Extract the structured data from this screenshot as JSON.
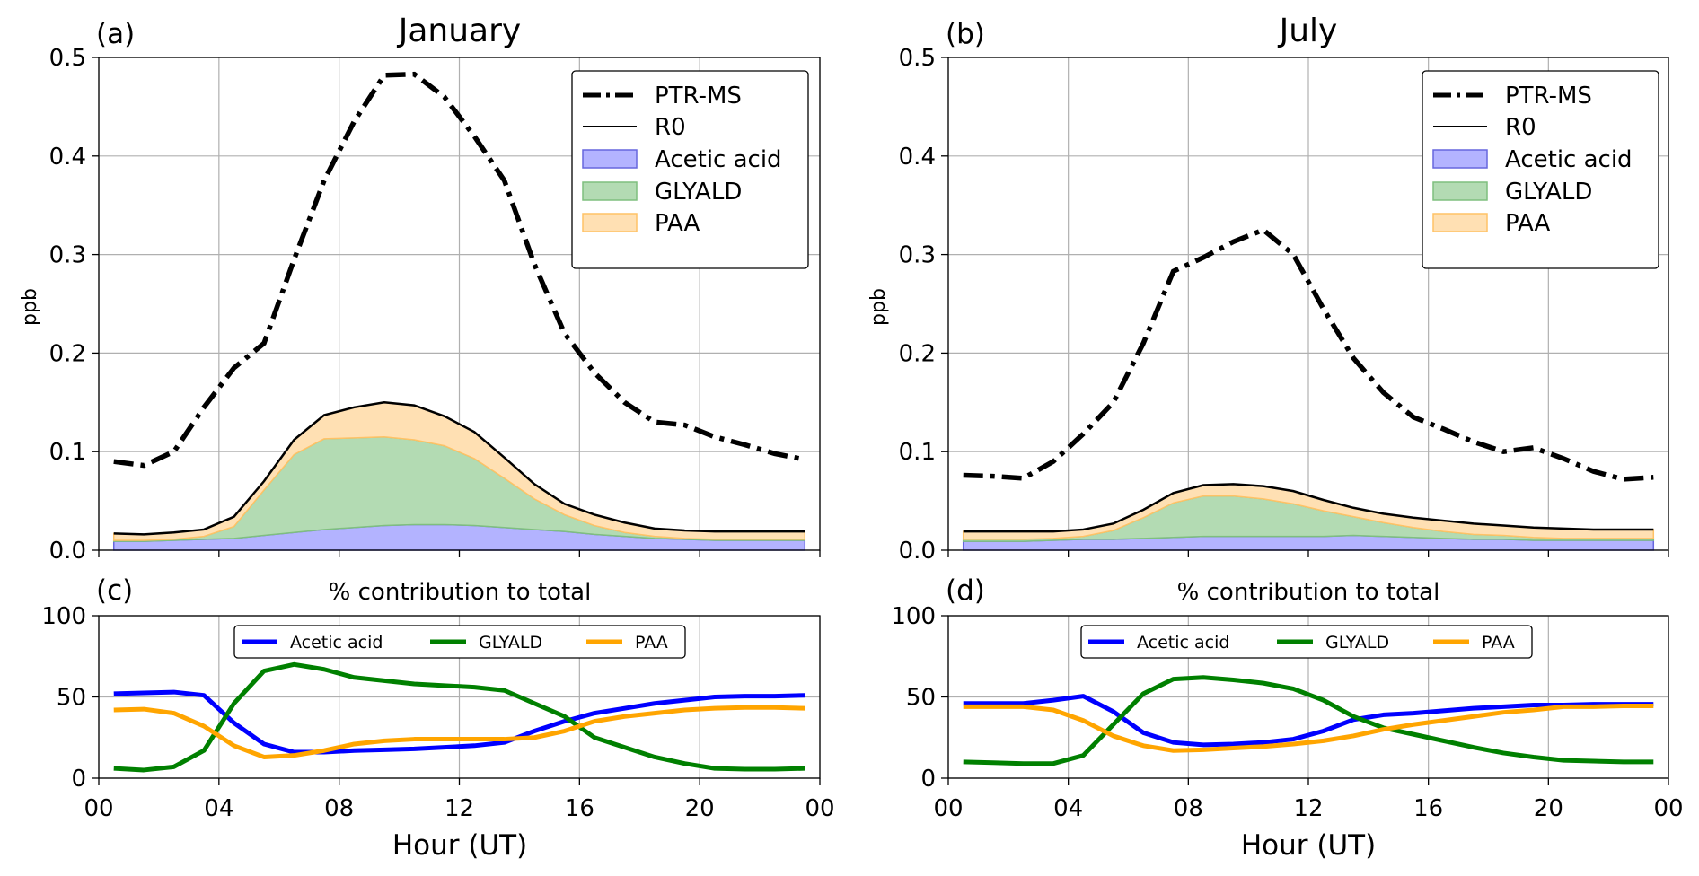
{
  "panels": [
    {
      "letter": "(a)",
      "title": "January",
      "ylabel": "ppb",
      "legend": {
        "ptrms": "PTR-MS",
        "r0": "R0",
        "acetic": "Acetic acid",
        "glyald": "GLYALD",
        "paa": "PAA"
      }
    },
    {
      "letter": "(b)",
      "title": "July",
      "ylabel": "ppb",
      "legend": {
        "ptrms": "PTR-MS",
        "r0": "R0",
        "acetic": "Acetic acid",
        "glyald": "GLYALD",
        "paa": "PAA"
      }
    },
    {
      "letter": "(c)",
      "title": "% contribution to total",
      "legend": {
        "acetic": "Acetic acid",
        "glyald": "GLYALD",
        "paa": "PAA"
      }
    },
    {
      "letter": "(d)",
      "title": "% contribution to total",
      "legend": {
        "acetic": "Acetic acid",
        "glyald": "GLYALD",
        "paa": "PAA"
      }
    }
  ],
  "xlabel": "Hour (UT)",
  "colors": {
    "acetic_fill": "#b3b3ff",
    "acetic_edge": "#6666dd",
    "acetic_line": "#0000ff",
    "glyald_fill": "#b3dbb3",
    "glyald_edge": "#7fbf7f",
    "glyald_line": "#008000",
    "paa_fill": "#ffe0b3",
    "paa_edge": "#ffc266",
    "paa_line": "#ffa500",
    "ptrms": "#000000",
    "r0": "#000000"
  },
  "chart_data": [
    {
      "panel": "(a)",
      "type": "area",
      "title": "January",
      "xlabel": "",
      "ylabel": "ppb",
      "xlim": [
        0,
        24
      ],
      "ylim": [
        0,
        0.5
      ],
      "xticks": [
        "00",
        "04",
        "08",
        "12",
        "16",
        "20",
        "00"
      ],
      "yticks": [
        "0.0",
        "0.1",
        "0.2",
        "0.3",
        "0.4",
        "0.5"
      ],
      "grid": true,
      "legend_position": "top-right",
      "x": [
        0.5,
        1.5,
        2.5,
        3.5,
        4.5,
        5.5,
        6.5,
        7.5,
        8.5,
        9.5,
        10.5,
        11.5,
        12.5,
        13.5,
        14.5,
        15.5,
        16.5,
        17.5,
        18.5,
        19.5,
        20.5,
        21.5,
        22.5,
        23.5
      ],
      "series": [
        {
          "name": "PTR-MS",
          "style": "dashdot",
          "values": [
            0.09,
            0.086,
            0.1,
            0.145,
            0.185,
            0.21,
            0.295,
            0.375,
            0.435,
            0.482,
            0.483,
            0.46,
            0.42,
            0.375,
            0.29,
            0.22,
            0.18,
            0.15,
            0.13,
            0.127,
            0.115,
            0.107,
            0.098,
            0.092
          ]
        },
        {
          "name": "R0",
          "style": "solid",
          "values": [
            0.017,
            0.016,
            0.018,
            0.021,
            0.034,
            0.07,
            0.112,
            0.137,
            0.145,
            0.15,
            0.147,
            0.136,
            0.12,
            0.094,
            0.067,
            0.047,
            0.036,
            0.028,
            0.022,
            0.02,
            0.019,
            0.019,
            0.019,
            0.019
          ]
        },
        {
          "name": "Acetic acid",
          "style": "stacked-area",
          "values": [
            0.009,
            0.009,
            0.01,
            0.011,
            0.012,
            0.015,
            0.018,
            0.021,
            0.023,
            0.025,
            0.026,
            0.026,
            0.025,
            0.023,
            0.021,
            0.019,
            0.016,
            0.014,
            0.012,
            0.011,
            0.01,
            0.01,
            0.01,
            0.01
          ]
        },
        {
          "name": "GLYALD",
          "style": "stacked-area",
          "values": [
            0.001,
            0.001,
            0.001,
            0.003,
            0.012,
            0.046,
            0.079,
            0.092,
            0.091,
            0.09,
            0.086,
            0.08,
            0.068,
            0.05,
            0.031,
            0.017,
            0.009,
            0.004,
            0.002,
            0.001,
            0.001,
            0.001,
            0.001,
            0.001
          ]
        },
        {
          "name": "PAA",
          "style": "stacked-area",
          "values": [
            0.007,
            0.006,
            0.007,
            0.007,
            0.01,
            0.009,
            0.015,
            0.024,
            0.031,
            0.035,
            0.035,
            0.03,
            0.027,
            0.021,
            0.015,
            0.011,
            0.011,
            0.01,
            0.008,
            0.008,
            0.008,
            0.008,
            0.008,
            0.008
          ]
        }
      ]
    },
    {
      "panel": "(b)",
      "type": "area",
      "title": "July",
      "xlabel": "",
      "ylabel": "ppb",
      "xlim": [
        0,
        24
      ],
      "ylim": [
        0,
        0.5
      ],
      "xticks": [
        "00",
        "04",
        "08",
        "12",
        "16",
        "20",
        "00"
      ],
      "yticks": [
        "0.0",
        "0.1",
        "0.2",
        "0.3",
        "0.4",
        "0.5"
      ],
      "grid": true,
      "legend_position": "top-right",
      "x": [
        0.5,
        1.5,
        2.5,
        3.5,
        4.5,
        5.5,
        6.5,
        7.5,
        8.5,
        9.5,
        10.5,
        11.5,
        12.5,
        13.5,
        14.5,
        15.5,
        16.5,
        17.5,
        18.5,
        19.5,
        20.5,
        21.5,
        22.5,
        23.5
      ],
      "series": [
        {
          "name": "PTR-MS",
          "style": "dashdot",
          "values": [
            0.076,
            0.075,
            0.073,
            0.09,
            0.118,
            0.15,
            0.21,
            0.283,
            0.297,
            0.313,
            0.325,
            0.3,
            0.245,
            0.195,
            0.16,
            0.135,
            0.123,
            0.11,
            0.1,
            0.104,
            0.093,
            0.08,
            0.072,
            0.074
          ]
        },
        {
          "name": "R0",
          "style": "solid",
          "values": [
            0.019,
            0.019,
            0.019,
            0.019,
            0.021,
            0.027,
            0.041,
            0.058,
            0.066,
            0.067,
            0.065,
            0.06,
            0.051,
            0.043,
            0.037,
            0.033,
            0.03,
            0.027,
            0.025,
            0.023,
            0.022,
            0.021,
            0.021,
            0.021
          ]
        },
        {
          "name": "Acetic acid",
          "style": "stacked-area",
          "values": [
            0.009,
            0.009,
            0.009,
            0.01,
            0.011,
            0.011,
            0.012,
            0.013,
            0.014,
            0.014,
            0.014,
            0.014,
            0.014,
            0.015,
            0.014,
            0.013,
            0.012,
            0.011,
            0.011,
            0.01,
            0.01,
            0.01,
            0.01,
            0.01
          ]
        },
        {
          "name": "GLYALD",
          "style": "stacked-area",
          "values": [
            0.002,
            0.002,
            0.002,
            0.002,
            0.003,
            0.009,
            0.021,
            0.035,
            0.041,
            0.041,
            0.038,
            0.033,
            0.026,
            0.019,
            0.014,
            0.01,
            0.007,
            0.005,
            0.004,
            0.003,
            0.002,
            0.002,
            0.002,
            0.002
          ]
        },
        {
          "name": "PAA",
          "style": "stacked-area",
          "values": [
            0.008,
            0.008,
            0.008,
            0.007,
            0.007,
            0.007,
            0.008,
            0.01,
            0.011,
            0.012,
            0.013,
            0.013,
            0.011,
            0.009,
            0.009,
            0.01,
            0.011,
            0.011,
            0.01,
            0.01,
            0.01,
            0.009,
            0.009,
            0.009
          ]
        }
      ]
    },
    {
      "panel": "(c)",
      "type": "line",
      "title": "% contribution to total",
      "xlabel": "Hour (UT)",
      "ylabel": "",
      "xlim": [
        0,
        24
      ],
      "ylim": [
        0,
        100
      ],
      "xticks": [
        "00",
        "04",
        "08",
        "12",
        "16",
        "20",
        "00"
      ],
      "yticks": [
        "0",
        "50",
        "100"
      ],
      "grid": true,
      "legend_position": "top-center",
      "x": [
        0.5,
        1.5,
        2.5,
        3.5,
        4.5,
        5.5,
        6.5,
        7.5,
        8.5,
        9.5,
        10.5,
        11.5,
        12.5,
        13.5,
        14.5,
        15.5,
        16.5,
        17.5,
        18.5,
        19.5,
        20.5,
        21.5,
        22.5,
        23.5
      ],
      "series": [
        {
          "name": "Acetic acid",
          "values": [
            52,
            52.5,
            53,
            51,
            34,
            21,
            16,
            16,
            17,
            17.5,
            18,
            19,
            20,
            22,
            29,
            35,
            40,
            43,
            46,
            48,
            50,
            50.5,
            50.5,
            51
          ]
        },
        {
          "name": "GLYALD",
          "values": [
            6,
            5,
            7,
            17,
            46,
            66,
            70,
            67,
            62,
            60,
            58,
            57,
            56,
            54,
            46,
            38,
            25,
            19,
            13,
            9,
            6,
            5.5,
            5.5,
            6
          ]
        },
        {
          "name": "PAA",
          "values": [
            42,
            42.5,
            40,
            32,
            20,
            13,
            14,
            17,
            21,
            23,
            24,
            24,
            24,
            24,
            25,
            29,
            35,
            38,
            40,
            42,
            43,
            43.5,
            43.5,
            43
          ]
        }
      ]
    },
    {
      "panel": "(d)",
      "type": "line",
      "title": "% contribution to total",
      "xlabel": "Hour (UT)",
      "ylabel": "",
      "xlim": [
        0,
        24
      ],
      "ylim": [
        0,
        100
      ],
      "xticks": [
        "00",
        "04",
        "08",
        "12",
        "16",
        "20",
        "00"
      ],
      "yticks": [
        "0",
        "50",
        "100"
      ],
      "grid": true,
      "legend_position": "top-center",
      "x": [
        0.5,
        1.5,
        2.5,
        3.5,
        4.5,
        5.5,
        6.5,
        7.5,
        8.5,
        9.5,
        10.5,
        11.5,
        12.5,
        13.5,
        14.5,
        15.5,
        16.5,
        17.5,
        18.5,
        19.5,
        20.5,
        21.5,
        22.5,
        23.5
      ],
      "series": [
        {
          "name": "Acetic acid",
          "values": [
            46,
            46,
            46,
            48,
            50.5,
            41,
            28,
            22,
            20.5,
            21,
            22,
            24,
            29,
            36,
            39,
            40,
            41.5,
            43,
            44,
            45,
            45,
            45.5,
            45.5,
            45.5
          ]
        },
        {
          "name": "GLYALD",
          "values": [
            10,
            9.5,
            9,
            9,
            14,
            33,
            52,
            61,
            62,
            60.5,
            58.5,
            55,
            48,
            38,
            31,
            27,
            23,
            19,
            15.5,
            13,
            11,
            10.5,
            10,
            10
          ]
        },
        {
          "name": "PAA",
          "values": [
            44,
            44,
            44,
            42,
            35.5,
            26,
            20,
            17,
            17.5,
            18.5,
            19.5,
            21,
            23,
            26,
            30,
            33,
            35.5,
            38,
            40.5,
            42,
            44,
            44,
            44.5,
            44.5
          ]
        }
      ]
    }
  ]
}
